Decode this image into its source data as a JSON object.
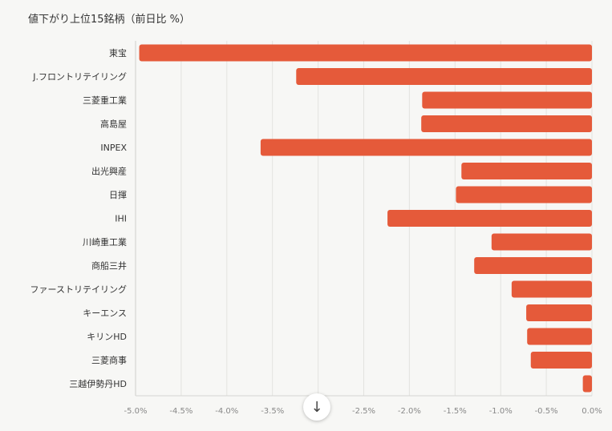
{
  "title": "値下がり上位15銘柄（前日比 %）",
  "chart_data": {
    "type": "bar",
    "orientation": "horizontal",
    "title": "値下がり上位15銘柄（前日比 %）",
    "categories": [
      "東宝",
      "J.フロントリテイリング",
      "三菱重工業",
      "高島屋",
      "INPEX",
      "出光興産",
      "日揮",
      "IHI",
      "川崎重工業",
      "商船三井",
      "ファーストリテイリング",
      "キーエンス",
      "キリンHD",
      "三菱商事",
      "三越伊勢丹HD"
    ],
    "values": [
      -4.96,
      -3.24,
      -1.86,
      -1.87,
      -3.63,
      -1.43,
      -1.49,
      -2.24,
      -1.1,
      -1.29,
      -0.88,
      -0.72,
      -0.71,
      -0.67,
      -0.1
    ],
    "xlim": [
      -5.0,
      0.0
    ],
    "gridlines": [
      -5.0,
      -4.5,
      -4.0,
      -3.5,
      -3.0,
      -2.5,
      -2.0,
      -1.5,
      -1.0,
      -0.5,
      0.0
    ],
    "ticks": [
      {
        "v": -5.0,
        "label": "-5.0%"
      },
      {
        "v": -4.5,
        "label": "-4.5%"
      },
      {
        "v": -4.0,
        "label": "-4.0%"
      },
      {
        "v": -3.5,
        "label": "-3.5%"
      },
      {
        "v": -2.5,
        "label": "-2.5%"
      },
      {
        "v": -2.0,
        "label": "-2.0%"
      },
      {
        "v": -1.5,
        "label": "-1.5%"
      },
      {
        "v": -1.0,
        "label": "-1.0%"
      },
      {
        "v": -0.5,
        "label": "-0.5%"
      },
      {
        "v": 0.0,
        "label": "0.0%"
      }
    ],
    "grid": true,
    "bar_color": "#e55a3a"
  },
  "scroll_button": {
    "icon": "arrow-down-icon",
    "glyph": "↓"
  }
}
